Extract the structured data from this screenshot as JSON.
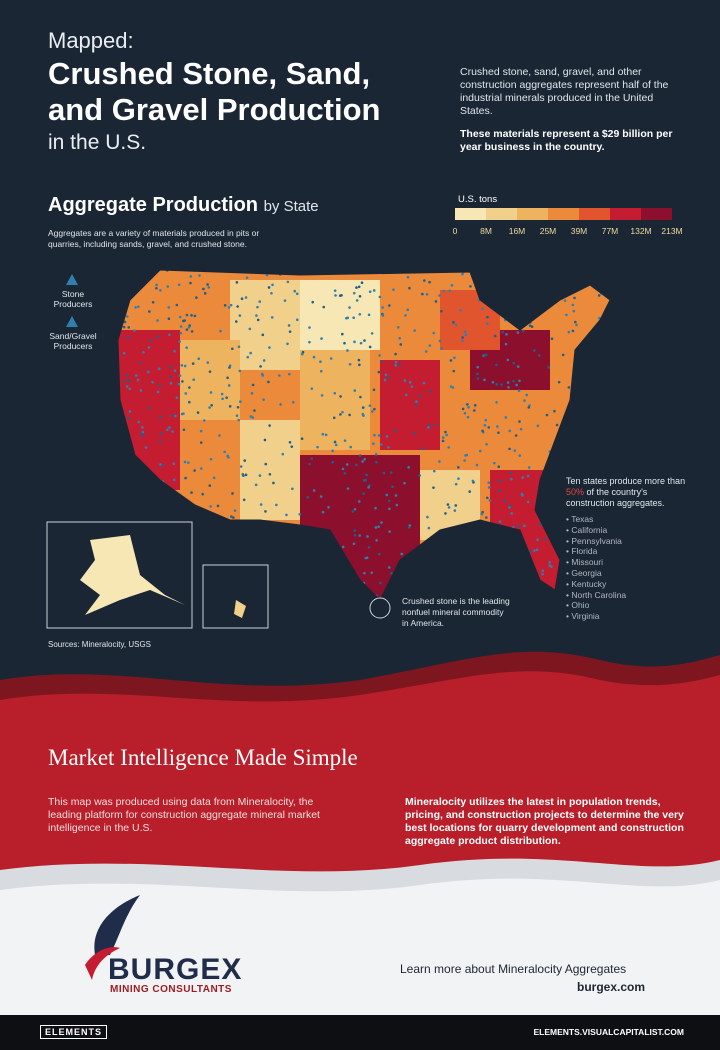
{
  "header": {
    "kicker": "Mapped:",
    "title_lines": [
      "Crushed Stone, Sand,",
      "and Gravel Production"
    ],
    "suffix": "in the U.S."
  },
  "intro": {
    "text": "Crushed stone, sand, gravel, and other construction aggregates represent half of the industrial minerals produced in the United States.",
    "highlight": "These materials represent a $29 billion per year business in the country."
  },
  "map": {
    "title": "Aggregate Production",
    "title_suffix": "by State",
    "description": "Aggregates are a variety of materials produced in pits or quarries, including sands, gravel, and crushed stone.",
    "legend": {
      "title": "U.S. tons",
      "labels": [
        "0",
        "8M",
        "16M",
        "25M",
        "39M",
        "77M",
        "132M",
        "213M"
      ],
      "colors": [
        "#f6e7b4",
        "#f0d08a",
        "#eeb35e",
        "#ec8a3c",
        "#e0552e",
        "#c41d32",
        "#8c0f2e"
      ]
    },
    "markers": [
      "Stone Producers",
      "Sand/Gravel Producers"
    ],
    "callout": {
      "before": "Ten states produce more than",
      "highlight": "50%",
      "after": "of the country's construction aggregates."
    },
    "top_states": [
      "Texas",
      "California",
      "Pennsylvania",
      "Florida",
      "Missouri",
      "Georgia",
      "Kentucky",
      "North Carolina",
      "Ohio",
      "Virginia"
    ],
    "note": "Crushed stone is the leading nonfuel mineral commodity in America.",
    "sources": "Sources: Mineralocity, USGS"
  },
  "section": {
    "title": "Market Intelligence Made Simple",
    "left": "This map was produced using data from Mineralocity, the leading platform for construction aggregate mineral market intelligence in the U.S.",
    "right": "Mineralocity utilizes the latest in population trends, pricing, and construction projects to determine the very best locations for quarry development and construction aggregate product distribution."
  },
  "footer": {
    "logo": "BURGEX",
    "logo_sub": "MINING CONSULTANTS",
    "cta": "Learn more about Mineralocity Aggregates",
    "url": "burgex.com"
  },
  "bottom_bar": {
    "brand": "ELEMENTS",
    "site": "ELEMENTS.VISUALCAPITALIST.COM"
  }
}
